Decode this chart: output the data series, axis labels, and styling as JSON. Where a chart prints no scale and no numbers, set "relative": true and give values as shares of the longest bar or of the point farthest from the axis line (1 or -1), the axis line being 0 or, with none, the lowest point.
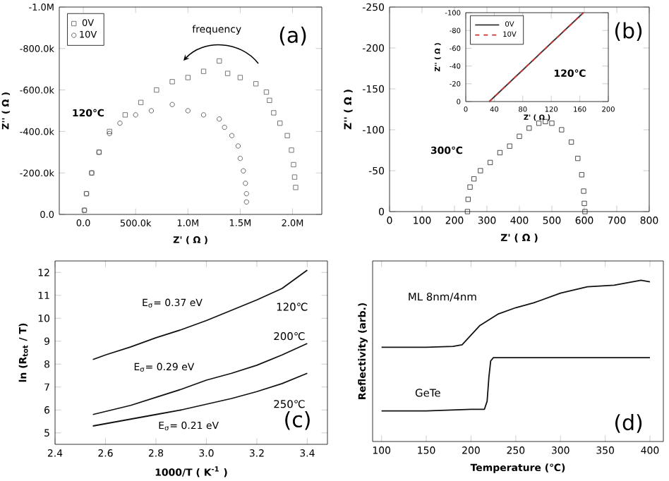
{
  "chart_data": [
    {
      "type": "scatter",
      "xlabel": "Z' ( Ω )",
      "ylabel": "Z'' ( Ω )",
      "annotations": [
        "frequency",
        "(a)",
        "120℃"
      ],
      "legend": "top left",
      "xlim": [
        -230000,
        2280000
      ],
      "xticks": [
        {
          "value": 0,
          "label": "0.0"
        },
        {
          "value": 500000,
          "label": "500.0k"
        },
        {
          "value": 1000000,
          "label": "1.0M"
        },
        {
          "value": 1500000,
          "label": "1.5M"
        },
        {
          "value": 2000000,
          "label": "2.0M"
        }
      ],
      "ylim": [
        0,
        -1000000
      ],
      "yticks": [
        {
          "value": 0,
          "label": "0.0"
        },
        {
          "value": -200000,
          "label": "-200.0k"
        },
        {
          "value": -400000,
          "label": "-400.0k"
        },
        {
          "value": -600000,
          "label": "-600.0k"
        },
        {
          "value": -800000,
          "label": "-800.0k"
        },
        {
          "value": -1000000,
          "label": "-1.0M"
        }
      ],
      "series": [
        {
          "name": "0V",
          "color": "#555555",
          "marker": "square",
          "x": [
            10000,
            30000,
            80000,
            150000,
            250000,
            400000,
            550000,
            700000,
            850000,
            1000000,
            1150000,
            1300000,
            1380000,
            1500000,
            1650000,
            1750000,
            1780000,
            1820000,
            1880000,
            1950000,
            1990000,
            2010000,
            2020000,
            2030000
          ],
          "values": [
            -20000,
            -100000,
            -200000,
            -300000,
            -400000,
            -480000,
            -540000,
            -600000,
            -640000,
            -660000,
            -690000,
            -740000,
            -680000,
            -660000,
            -630000,
            -590000,
            -550000,
            -490000,
            -440000,
            -380000,
            -310000,
            -240000,
            -180000,
            -130000
          ]
        },
        {
          "name": "10V",
          "color": "#444444",
          "marker": "circle",
          "x": [
            10000,
            30000,
            80000,
            150000,
            250000,
            350000,
            500000,
            650000,
            850000,
            1000000,
            1150000,
            1300000,
            1350000,
            1420000,
            1480000,
            1500000,
            1530000,
            1550000,
            1560000,
            1560000
          ],
          "values": [
            -20000,
            -100000,
            -200000,
            -300000,
            -390000,
            -440000,
            -480000,
            -500000,
            -530000,
            -500000,
            -480000,
            -460000,
            -420000,
            -380000,
            -330000,
            -270000,
            -210000,
            -150000,
            -100000,
            -60000
          ]
        }
      ]
    },
    {
      "type": "scatter",
      "xlabel": "Z' ( Ω )",
      "ylabel": "Z'' ( Ω )",
      "annotations": [
        "300℃",
        "(b)"
      ],
      "marker": "square",
      "xlim": [
        0,
        800
      ],
      "xticks": [
        0,
        100,
        200,
        300,
        400,
        500,
        600,
        700,
        800
      ],
      "ylim": [
        0,
        -250
      ],
      "yticks": [
        0,
        -50,
        -100,
        -150,
        -200,
        -250
      ],
      "series": [
        {
          "color": "#222222",
          "x": [
            240,
            242,
            248,
            260,
            280,
            310,
            340,
            370,
            400,
            430,
            460,
            480,
            500,
            530,
            560,
            580,
            592,
            598,
            600,
            602
          ],
          "values": [
            0,
            -15,
            -30,
            -40,
            -50,
            -60,
            -72,
            -80,
            -92,
            -102,
            -108,
            -110,
            -108,
            -100,
            -85,
            -65,
            -45,
            -25,
            -10,
            0
          ]
        }
      ]
    },
    {
      "type": "line",
      "xlabel": "Z' ( Ω )",
      "ylabel": "Z'' ( Ω )",
      "annotations": [
        "120℃"
      ],
      "legend": "top left",
      "xlim": [
        0,
        200
      ],
      "xticks": [
        0,
        40,
        80,
        120,
        160,
        200
      ],
      "ylim": [
        0,
        -100
      ],
      "yticks": [
        0,
        -20,
        -40,
        -60,
        -80,
        -100
      ],
      "series": [
        {
          "name": "0V",
          "color": "#333333",
          "x": [
            33,
            165
          ],
          "values": [
            0,
            -100
          ]
        },
        {
          "name": "10V",
          "color": "#cc3333",
          "line_style": "dashed",
          "x": [
            33,
            165
          ],
          "values": [
            0,
            -100
          ]
        }
      ]
    },
    {
      "type": "line",
      "xlabel": "1000/T ( K$^{-1}$ )",
      "ylabel": "ln (R$_{tot}$ / T)",
      "annotations": [
        "E$_{σ}$= 0.37 eV",
        "E$_{σ}$= 0.29 eV",
        "E$_{σ}$= 0.21 eV",
        "(c)"
      ],
      "xlim": [
        2.4,
        3.48
      ],
      "xticks": [
        2.4,
        2.6,
        2.8,
        {
          "value": 3.0,
          "label": "3.0"
        },
        3.2,
        3.4
      ],
      "ylim": [
        4.5,
        12.5
      ],
      "yticks": [
        5,
        6,
        7,
        8,
        9,
        10,
        11,
        12
      ],
      "series": [
        {
          "name": "120℃",
          "color": "#111111",
          "x": [
            2.55,
            2.6,
            2.7,
            2.8,
            2.9,
            3.0,
            3.1,
            3.2,
            3.3,
            3.4
          ],
          "values": [
            8.2,
            8.4,
            8.75,
            9.15,
            9.5,
            9.9,
            10.35,
            10.8,
            11.3,
            12.1
          ]
        },
        {
          "name": "200℃",
          "color": "#111111",
          "x": [
            2.55,
            2.7,
            2.8,
            2.9,
            3.0,
            3.1,
            3.2,
            3.3,
            3.4
          ],
          "values": [
            5.8,
            6.2,
            6.55,
            6.9,
            7.3,
            7.6,
            7.95,
            8.4,
            8.9
          ]
        },
        {
          "name": "250℃",
          "color": "#111111",
          "x": [
            2.55,
            2.7,
            2.8,
            2.9,
            3.0,
            3.1,
            3.2,
            3.3,
            3.4
          ],
          "values": [
            5.3,
            5.6,
            5.8,
            6.0,
            6.25,
            6.5,
            6.8,
            7.15,
            7.6
          ]
        }
      ]
    },
    {
      "type": "line",
      "relative": true,
      "tick_labels": "x",
      "xlabel": "Temperature (℃)",
      "ylabel": "Reflectivity (arb.)",
      "annotations": [
        "(d)"
      ],
      "xlim": [
        90,
        415
      ],
      "xticks": [
        100,
        150,
        200,
        250,
        300,
        350,
        400
      ],
      "series": [
        {
          "name": "ML 8nm/4nm",
          "color": "#111111",
          "x": [
            100,
            150,
            180,
            190,
            200,
            210,
            230,
            250,
            270,
            300,
            330,
            360,
            390,
            400
          ],
          "values": [
            0.585,
            0.585,
            0.59,
            0.6,
            0.66,
            0.72,
            0.79,
            0.83,
            0.86,
            0.92,
            0.96,
            0.97,
            1.0,
            0.99
          ]
        },
        {
          "name": "GeTe",
          "color": "#111111",
          "x": [
            100,
            150,
            200,
            215,
            218,
            220,
            222,
            225,
            250,
            300,
            350,
            400
          ],
          "values": [
            0.19,
            0.19,
            0.2,
            0.2,
            0.25,
            0.4,
            0.5,
            0.52,
            0.52,
            0.52,
            0.52,
            0.52
          ]
        }
      ]
    }
  ]
}
